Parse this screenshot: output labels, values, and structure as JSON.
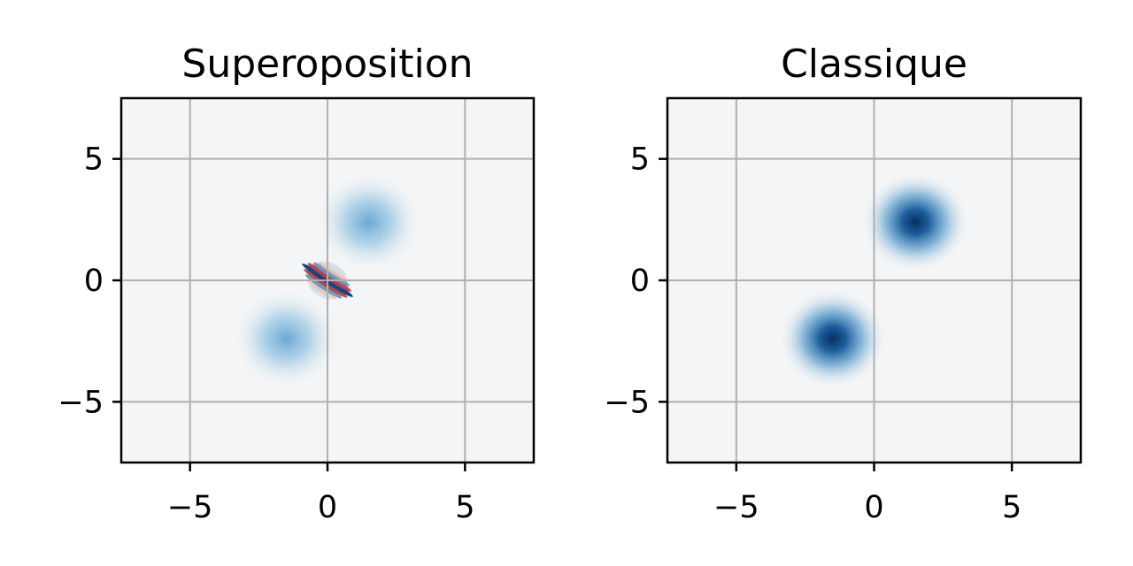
{
  "chart_data": [
    {
      "type": "heatmap",
      "title": "Superoposition",
      "xlabel": "",
      "ylabel": "",
      "xlim": [
        -7.5,
        7.5
      ],
      "ylim": [
        -7.5,
        7.5
      ],
      "xticks": [
        -5,
        0,
        5
      ],
      "yticks": [
        -5,
        0,
        5
      ],
      "xtick_labels": [
        "−5",
        "0",
        "5"
      ],
      "ytick_labels": [
        "5",
        "0",
        "−5"
      ],
      "grid": true,
      "colormap": "RdBu",
      "features": [
        {
          "kind": "gaussian",
          "x": 1.5,
          "y": 2.4,
          "sigma": 0.7,
          "amplitude": 0.45
        },
        {
          "kind": "gaussian",
          "x": -1.5,
          "y": -2.4,
          "sigma": 0.7,
          "amplitude": 0.45
        },
        {
          "kind": "interference",
          "x": 0,
          "y": 0,
          "sigma": 0.6,
          "amplitude": 1.0
        }
      ]
    },
    {
      "type": "heatmap",
      "title": "Classique",
      "xlabel": "",
      "ylabel": "",
      "xlim": [
        -7.5,
        7.5
      ],
      "ylim": [
        -7.5,
        7.5
      ],
      "xticks": [
        -5,
        0,
        5
      ],
      "yticks": [
        -5,
        0,
        5
      ],
      "xtick_labels": [
        "−5",
        "0",
        "5"
      ],
      "ytick_labels": [
        "5",
        "0",
        "−5"
      ],
      "grid": true,
      "colormap": "RdBu",
      "features": [
        {
          "kind": "gaussian",
          "x": 1.5,
          "y": 2.4,
          "sigma": 0.7,
          "amplitude": 1.0
        },
        {
          "kind": "gaussian",
          "x": -1.5,
          "y": -2.4,
          "sigma": 0.7,
          "amplitude": 1.0
        }
      ]
    }
  ],
  "colors": {
    "background": "#ffffff",
    "field": "#f4f5f6",
    "grid": "#b0b0b0",
    "dark_blue": "#053061",
    "mid_blue": "#2166ac",
    "light_blue": "#92c5de",
    "red": "#b2182b",
    "light_red": "#f4a582"
  }
}
